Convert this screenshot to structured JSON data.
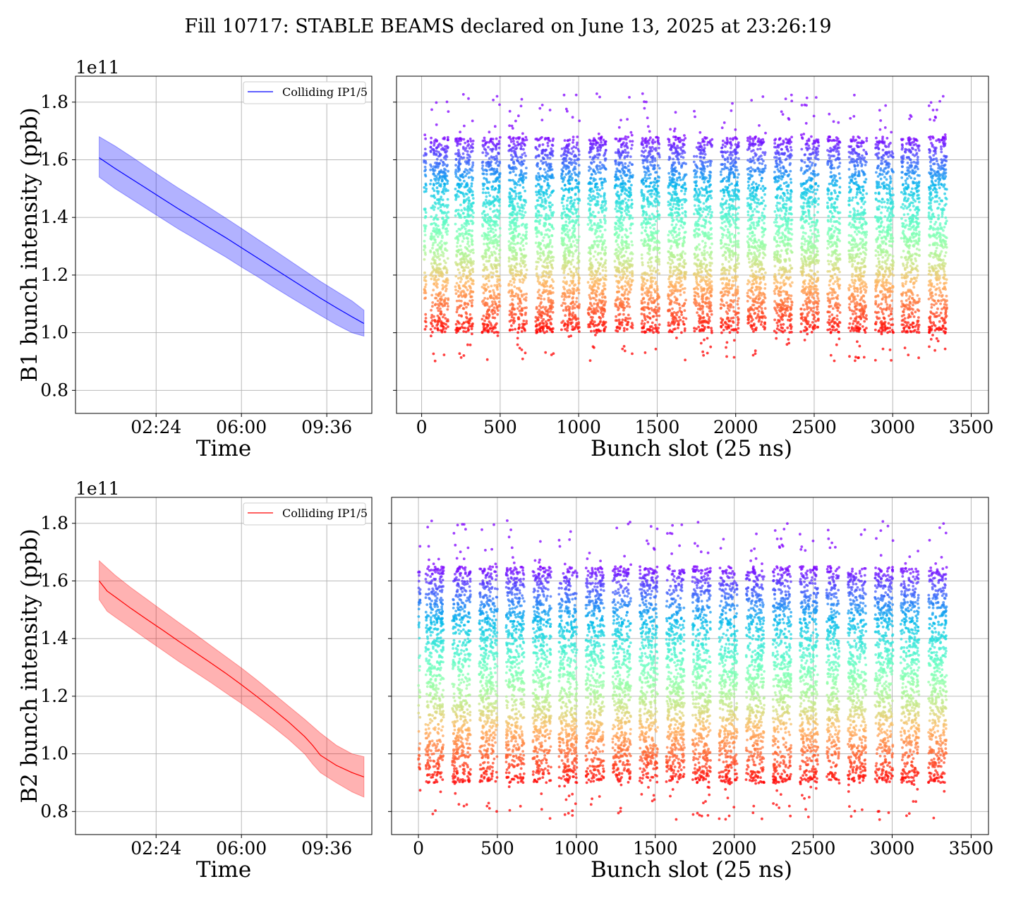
{
  "title": "Fill 10717: STABLE BEAMS declared on June 13, 2025 at 23:26:19",
  "colors": {
    "b1": "#0000ff",
    "b2": "#ff0000",
    "grid": "#b0b0b0"
  },
  "chart_data": [
    {
      "type": "area",
      "beam": "B1",
      "offset_label": "1e11",
      "xlabel": "Time",
      "ylabel": "B1 bunch intensity (ppb)",
      "x_ticks": [
        "02:24",
        "06:00",
        "09:36"
      ],
      "y_ticks": [
        "0.8",
        "1.0",
        "1.2",
        "1.4",
        "1.6",
        "1.8"
      ],
      "ylim": [
        0.72,
        1.89
      ],
      "grid": true,
      "legend": {
        "label": "Colliding IP1/5",
        "placement": "top-right"
      },
      "x": [
        "00:00",
        "00:40",
        "01:20",
        "02:00",
        "02:40",
        "03:20",
        "04:00",
        "04:40",
        "05:20",
        "06:00",
        "06:40",
        "07:20",
        "08:00",
        "08:40",
        "09:20",
        "10:00",
        "10:40",
        "11:10"
      ],
      "series": [
        {
          "name": "Colliding IP1/5",
          "values": [
            1.607,
            1.57,
            1.535,
            1.5,
            1.465,
            1.43,
            1.397,
            1.363,
            1.33,
            1.295,
            1.26,
            1.225,
            1.19,
            1.155,
            1.12,
            1.087,
            1.055,
            1.032
          ]
        },
        {
          "name": "upper",
          "values": [
            1.68,
            1.648,
            1.612,
            1.575,
            1.538,
            1.502,
            1.468,
            1.433,
            1.398,
            1.362,
            1.325,
            1.289,
            1.252,
            1.215,
            1.178,
            1.144,
            1.11,
            1.078
          ]
        },
        {
          "name": "lower",
          "values": [
            1.54,
            1.5,
            1.465,
            1.43,
            1.395,
            1.36,
            1.328,
            1.295,
            1.263,
            1.228,
            1.195,
            1.16,
            1.126,
            1.093,
            1.06,
            1.028,
            1.0,
            0.988
          ]
        }
      ]
    },
    {
      "type": "scatter",
      "beam": "B1",
      "xlabel": "Bunch slot (25 ns)",
      "x_ticks": [
        0,
        500,
        1000,
        1500,
        2000,
        2500,
        3000,
        3500
      ],
      "xlim": [
        -160,
        3610
      ],
      "ylim": [
        0.72,
        1.89
      ],
      "grid": true,
      "bunch_trains": [
        [
          15,
          30
        ],
        [
          55,
          170
        ],
        [
          215,
          330
        ],
        [
          385,
          500
        ],
        [
          555,
          670
        ],
        [
          725,
          840
        ],
        [
          890,
          1005
        ],
        [
          1060,
          1175
        ],
        [
          1230,
          1345
        ],
        [
          1400,
          1515
        ],
        [
          1570,
          1685
        ],
        [
          1735,
          1850
        ],
        [
          1905,
          2020
        ],
        [
          2075,
          2190
        ],
        [
          2245,
          2360
        ],
        [
          2415,
          2530
        ],
        [
          2585,
          2665
        ],
        [
          2720,
          2835
        ],
        [
          2890,
          3005
        ],
        [
          3055,
          3170
        ],
        [
          3230,
          3345
        ]
      ],
      "intensity_range": [
        0.9,
        1.83
      ],
      "core_range": [
        1.0,
        1.68
      ],
      "colormap": "rainbow"
    },
    {
      "type": "area",
      "beam": "B2",
      "offset_label": "1e11",
      "xlabel": "Time",
      "ylabel": "B2 bunch intensity (ppb)",
      "x_ticks": [
        "02:24",
        "06:00",
        "09:36"
      ],
      "y_ticks": [
        "0.8",
        "1.0",
        "1.2",
        "1.4",
        "1.6",
        "1.8"
      ],
      "ylim": [
        0.72,
        1.89
      ],
      "grid": true,
      "legend": {
        "label": "Colliding IP1/5",
        "placement": "top-right"
      },
      "x": [
        "00:00",
        "00:20",
        "00:40",
        "01:20",
        "02:00",
        "02:40",
        "03:20",
        "04:00",
        "04:40",
        "05:20",
        "06:00",
        "06:40",
        "07:20",
        "08:00",
        "08:40",
        "09:00",
        "09:20",
        "10:00",
        "10:40",
        "11:10"
      ],
      "series": [
        {
          "name": "Colliding IP1/5",
          "values": [
            1.6,
            1.565,
            1.545,
            1.505,
            1.467,
            1.43,
            1.392,
            1.355,
            1.318,
            1.28,
            1.24,
            1.198,
            1.155,
            1.11,
            1.06,
            1.03,
            0.995,
            0.96,
            0.935,
            0.92
          ]
        },
        {
          "name": "upper",
          "values": [
            1.67,
            1.645,
            1.62,
            1.577,
            1.537,
            1.497,
            1.457,
            1.418,
            1.378,
            1.338,
            1.298,
            1.255,
            1.21,
            1.165,
            1.12,
            1.096,
            1.072,
            1.03,
            1.0,
            0.99
          ]
        },
        {
          "name": "lower",
          "values": [
            1.535,
            1.495,
            1.475,
            1.437,
            1.398,
            1.36,
            1.322,
            1.286,
            1.25,
            1.212,
            1.175,
            1.135,
            1.094,
            1.05,
            1.0,
            0.965,
            0.935,
            0.9,
            0.868,
            0.85
          ]
        }
      ]
    },
    {
      "type": "scatter",
      "beam": "B2",
      "xlabel": "Bunch slot (25 ns)",
      "x_ticks": [
        0,
        500,
        1000,
        1500,
        2000,
        2500,
        3000,
        3500
      ],
      "xlim": [
        -170,
        3610
      ],
      "ylim": [
        0.72,
        1.89
      ],
      "grid": true,
      "bunch_trains": [
        [
          0,
          12
        ],
        [
          45,
          160
        ],
        [
          215,
          330
        ],
        [
          385,
          500
        ],
        [
          555,
          670
        ],
        [
          725,
          840
        ],
        [
          890,
          1005
        ],
        [
          1060,
          1175
        ],
        [
          1230,
          1345
        ],
        [
          1400,
          1515
        ],
        [
          1570,
          1685
        ],
        [
          1735,
          1850
        ],
        [
          1905,
          2020
        ],
        [
          2075,
          2190
        ],
        [
          2245,
          2360
        ],
        [
          2415,
          2530
        ],
        [
          2585,
          2665
        ],
        [
          2720,
          2835
        ],
        [
          2890,
          3005
        ],
        [
          3055,
          3170
        ],
        [
          3230,
          3345
        ]
      ],
      "intensity_range": [
        0.77,
        1.81
      ],
      "core_range": [
        0.9,
        1.65
      ],
      "colormap": "rainbow"
    }
  ]
}
